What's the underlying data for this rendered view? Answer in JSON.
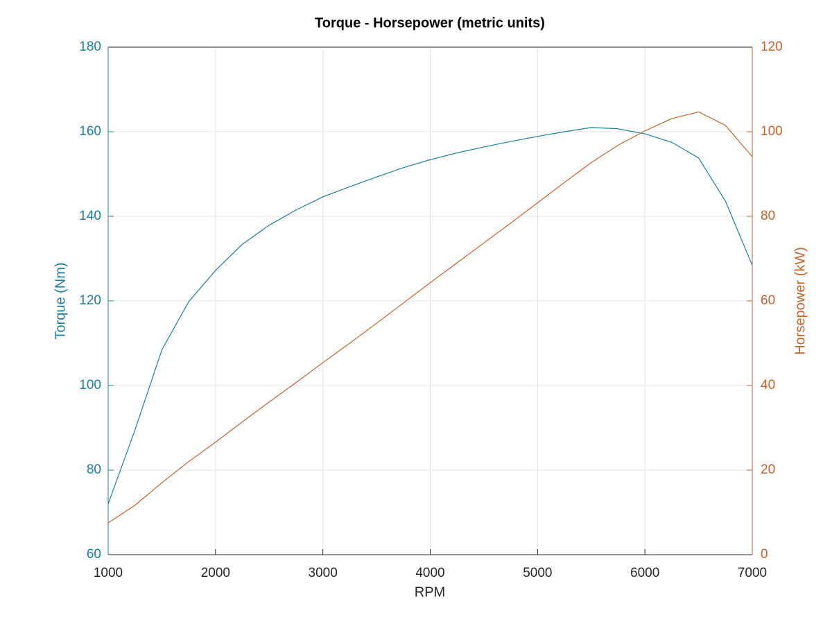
{
  "chart_data": {
    "type": "line",
    "title": "Torque - Horsepower (metric units)",
    "x_label": "RPM",
    "y_label": "Torque (Nm)",
    "y2_label": "Horsepower (kW)",
    "x": [
      1000,
      1250,
      1500,
      1750,
      2000,
      2250,
      2500,
      2750,
      3000,
      3250,
      3500,
      3750,
      4000,
      4250,
      4500,
      4750,
      5000,
      5250,
      5500,
      5750,
      6000,
      6250,
      6500,
      6750,
      7000
    ],
    "series": [
      {
        "name": "Torque",
        "color": "#1a7f9c",
        "axis": "y",
        "values": [
          72,
          89.5,
          108.4,
          119.8,
          127.2,
          133.4,
          137.9,
          141.5,
          144.6,
          147,
          149.3,
          151.5,
          153.4,
          155,
          156.4,
          157.7,
          158.9,
          160,
          161,
          160.7,
          159.5,
          157.5,
          153.8,
          143.6,
          128.4
        ]
      },
      {
        "name": "Horsepower",
        "color": "#c5622a",
        "axis": "y2",
        "values": [
          7.5,
          11.7,
          17.0,
          22.0,
          26.6,
          31.4,
          36.1,
          40.7,
          45.4,
          50.0,
          54.7,
          59.5,
          64.3,
          69.0,
          73.7,
          78.4,
          83.2,
          88.0,
          92.7,
          96.8,
          100.2,
          103.1,
          104.7,
          101.5,
          94.1
        ]
      }
    ],
    "xlim": [
      1000,
      7000
    ],
    "xticks": [
      1000,
      2000,
      3000,
      4000,
      5000,
      6000,
      7000
    ],
    "ylim": [
      60,
      180
    ],
    "yticks": [
      60,
      80,
      100,
      120,
      140,
      160,
      180
    ],
    "y2lim": [
      0,
      120
    ],
    "y2ticks": [
      0,
      20,
      40,
      60,
      80,
      100,
      120
    ],
    "grid": true
  }
}
